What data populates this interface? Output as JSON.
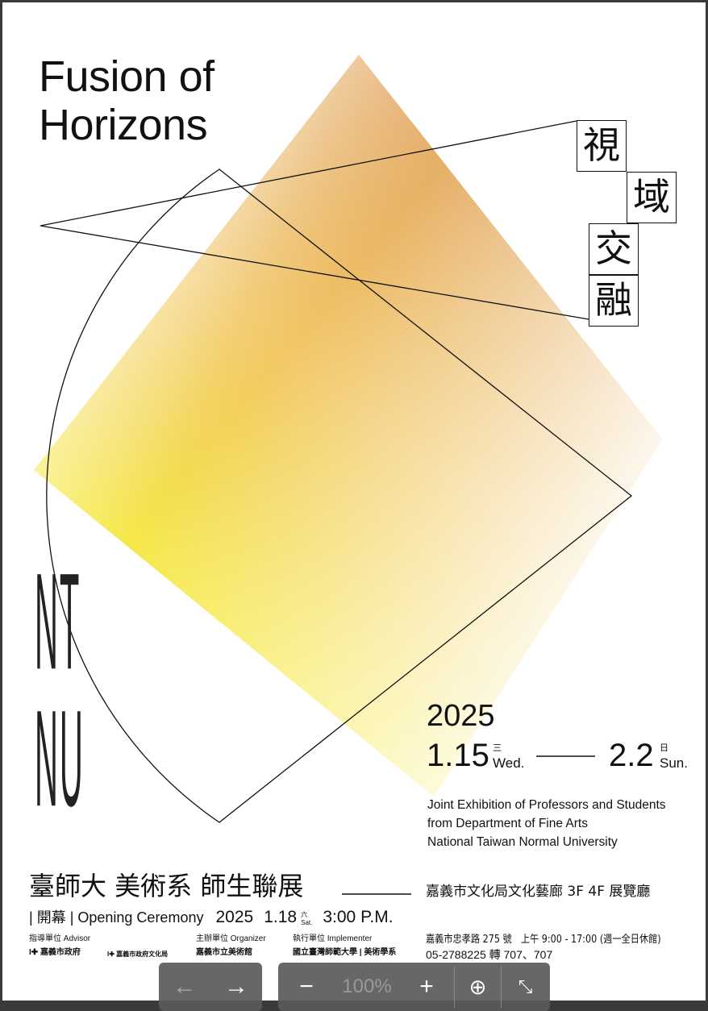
{
  "poster": {
    "title_lines": [
      "Fusion of",
      "Horizons"
    ],
    "cjk_title": [
      "視",
      "域",
      "交",
      "融"
    ],
    "side_mark": "NTNU",
    "year": "2025",
    "start_date": "1.15",
    "start_day_cn": "三",
    "start_day": "Wed.",
    "end_date": "2.2",
    "end_day_cn": "日",
    "end_day": "Sun.",
    "description": [
      "Joint Exhibition of Professors and Students",
      "from Department of Fine Arts",
      "National Taiwan Normal University"
    ],
    "cn_title": "臺師大 美術系  師生聯展",
    "venue": "嘉義市文化局文化藝廊 3F 4F 展覽廳",
    "opening": {
      "label_cn": "開幕",
      "label": "Opening Ceremony",
      "year": "2025",
      "date": "1.18",
      "day_cn": "六",
      "day": "Sat.",
      "time": "3:00 P.M."
    },
    "advisor_label": "指導單位 Advisor",
    "organizer_label": "主辦單位 Organizer",
    "implementer_label": "執行單位 Implementer",
    "logos": [
      "嘉義市政府",
      "嘉義市政府文化局",
      "嘉義市立美術館",
      "國立臺灣師範大學",
      "美術學系"
    ],
    "address": "嘉義市忠孝路 275 號　上午 9:00 - 17:00 (週一全日休館)",
    "phone": "05-2788225 轉 707、707",
    "colors": {
      "orange": "#d98a2e",
      "yellow": "#f7ef4a"
    }
  },
  "viewer": {
    "zoom": "100%",
    "prev": "previous-icon",
    "next": "next-icon",
    "zoom_out": "minus-icon",
    "zoom_in": "plus-icon",
    "download": "download-icon",
    "exit_fullscreen": "collapse-icon"
  }
}
